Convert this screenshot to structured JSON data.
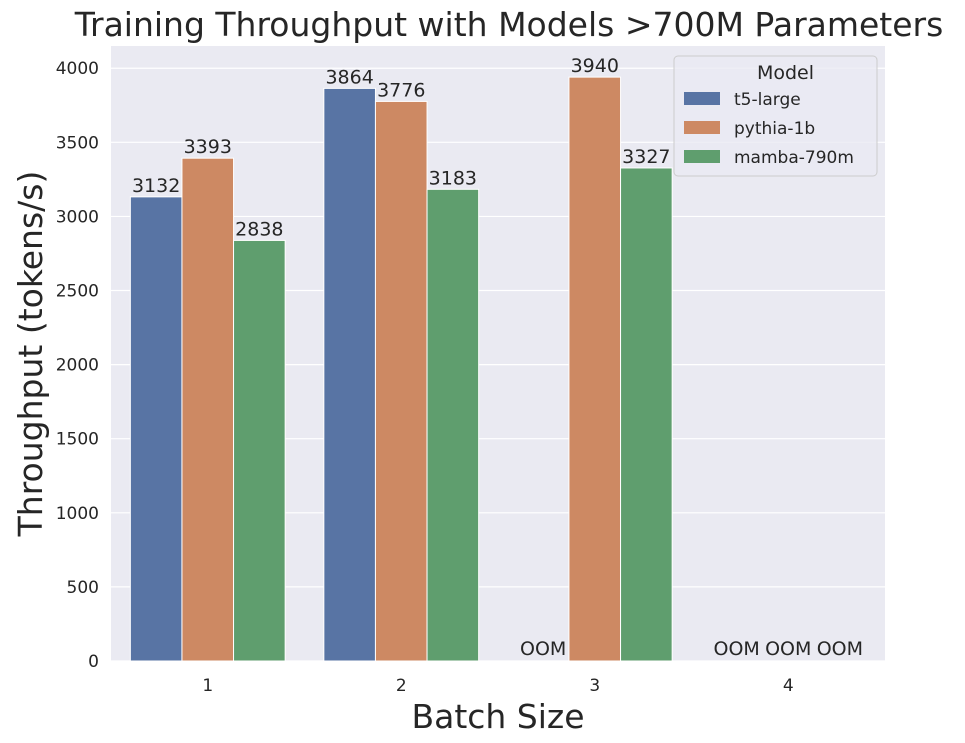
{
  "chart_data": {
    "type": "bar",
    "title": "Training Throughput with Models >700M Parameters",
    "xlabel": "Batch Size",
    "ylabel": "Throughput (tokens/s)",
    "categories": [
      "1",
      "2",
      "3",
      "4"
    ],
    "ylim": [
      0,
      4150
    ],
    "yticks": [
      0,
      500,
      1000,
      1500,
      2000,
      2500,
      3000,
      3500,
      4000
    ],
    "grid": true,
    "legend_title": "Model",
    "legend_position": "top-right",
    "oom_label": "OOM",
    "series": [
      {
        "name": "t5-large",
        "color": "#5874a4",
        "values": [
          3132,
          3864,
          null,
          null
        ],
        "labels": [
          "3132",
          "3864",
          "OOM",
          "OOM"
        ]
      },
      {
        "name": "pythia-1b",
        "color": "#cd8963",
        "values": [
          3393,
          3776,
          3940,
          null
        ],
        "labels": [
          "3393",
          "3776",
          "3940",
          "OOM"
        ]
      },
      {
        "name": "mamba-790m",
        "color": "#5f9e6e",
        "values": [
          2838,
          3183,
          3327,
          null
        ],
        "labels": [
          "2838",
          "3183",
          "3327",
          "OOM"
        ]
      }
    ]
  }
}
